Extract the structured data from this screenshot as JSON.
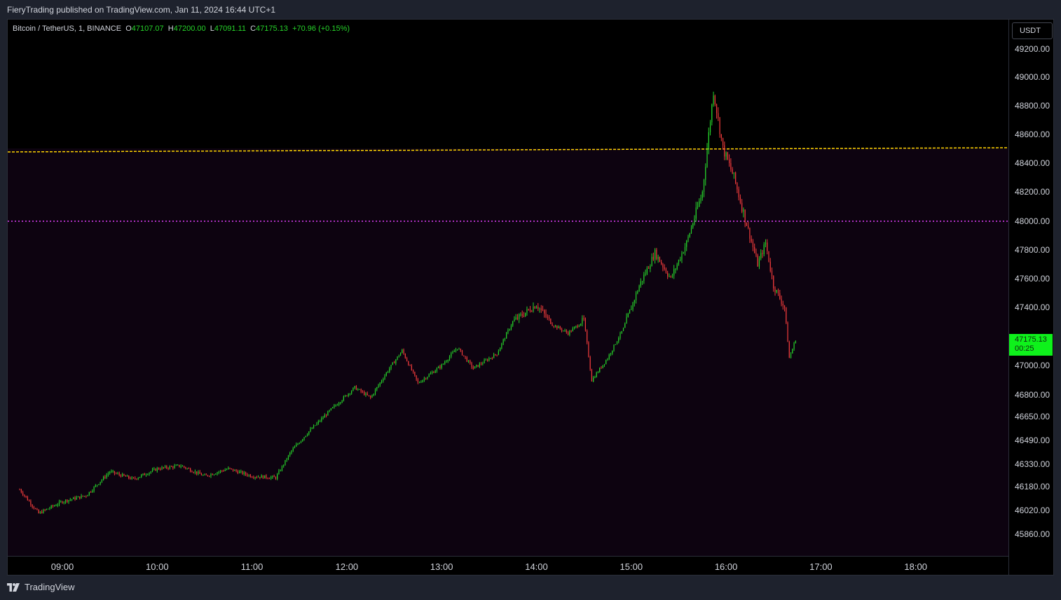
{
  "header": {
    "text": "FieryTrading published on TradingView.com, Jan 11, 2024 16:44 UTC+1"
  },
  "legend": {
    "symbol": "Bitcoin / TetherUS, 1, BINANCE",
    "o_label": "O",
    "o_value": "47107.07",
    "h_label": "H",
    "h_value": "47200.00",
    "l_label": "L",
    "l_value": "47091.11",
    "c_label": "C",
    "c_value": "47175.13",
    "change": "+70.96 (+0.15%)"
  },
  "price_axis": {
    "currency": "USDT",
    "labels": [
      "49200.00",
      "49000.00",
      "48800.00",
      "48600.00",
      "48400.00",
      "48200.00",
      "48000.00",
      "47800.00",
      "47600.00",
      "47400.00",
      "47000.00",
      "46800.00",
      "46650.00",
      "46490.00",
      "46330.00",
      "46180.00",
      "46020.00",
      "45860.00"
    ],
    "last_price": "47175.13",
    "countdown": "00:25"
  },
  "time_axis": {
    "labels": [
      "09:00",
      "10:00",
      "11:00",
      "12:00",
      "13:00",
      "14:00",
      "15:00",
      "16:00",
      "17:00",
      "18:00"
    ]
  },
  "footer": {
    "brand": "TradingView"
  },
  "colors": {
    "up": "#26d32a",
    "down": "#ef3b3b",
    "zone": "#0d0310",
    "line_yellow": "#ffd400",
    "line_magenta": "#e040fb",
    "price_tag": "#0ef11b"
  },
  "chart_data": {
    "type": "candlestick",
    "symbol": "BTCUSDT",
    "interval": "1m",
    "y_range": [
      45860,
      49200
    ],
    "x_range": [
      "08:33",
      "18:46"
    ],
    "horizontal_lines": [
      {
        "price": 48500,
        "color": "#ffd400",
        "style": "dashed"
      },
      {
        "price": 48000,
        "color": "#e040fb",
        "style": "dotted"
      }
    ],
    "shaded_zone_below": 48500,
    "key_points": [
      {
        "time": "08:33",
        "price": 46160
      },
      {
        "time": "08:45",
        "price": 46000
      },
      {
        "time": "09:00",
        "price": 46080
      },
      {
        "time": "09:15",
        "price": 46120
      },
      {
        "time": "09:30",
        "price": 46280
      },
      {
        "time": "09:45",
        "price": 46230
      },
      {
        "time": "10:00",
        "price": 46300
      },
      {
        "time": "10:15",
        "price": 46320
      },
      {
        "time": "10:30",
        "price": 46250
      },
      {
        "time": "10:45",
        "price": 46300
      },
      {
        "time": "11:00",
        "price": 46250
      },
      {
        "time": "11:15",
        "price": 46240
      },
      {
        "time": "11:25",
        "price": 46420
      },
      {
        "time": "11:35",
        "price": 46540
      },
      {
        "time": "11:50",
        "price": 46700
      },
      {
        "time": "12:05",
        "price": 46850
      },
      {
        "time": "12:15",
        "price": 46780
      },
      {
        "time": "12:25",
        "price": 46950
      },
      {
        "time": "12:35",
        "price": 47100
      },
      {
        "time": "12:45",
        "price": 46880
      },
      {
        "time": "13:00",
        "price": 47000
      },
      {
        "time": "13:10",
        "price": 47120
      },
      {
        "time": "13:20",
        "price": 46980
      },
      {
        "time": "13:35",
        "price": 47080
      },
      {
        "time": "13:45",
        "price": 47300
      },
      {
        "time": "14:00",
        "price": 47420
      },
      {
        "time": "14:10",
        "price": 47280
      },
      {
        "time": "14:20",
        "price": 47220
      },
      {
        "time": "14:30",
        "price": 47310
      },
      {
        "time": "14:35",
        "price": 46900
      },
      {
        "time": "14:45",
        "price": 47050
      },
      {
        "time": "14:55",
        "price": 47250
      },
      {
        "time": "15:05",
        "price": 47550
      },
      {
        "time": "15:15",
        "price": 47780
      },
      {
        "time": "15:25",
        "price": 47600
      },
      {
        "time": "15:35",
        "price": 47850
      },
      {
        "time": "15:45",
        "price": 48200
      },
      {
        "time": "15:52",
        "price": 48900
      },
      {
        "time": "15:58",
        "price": 48500
      },
      {
        "time": "16:05",
        "price": 48300
      },
      {
        "time": "16:15",
        "price": 47900
      },
      {
        "time": "16:20",
        "price": 47700
      },
      {
        "time": "16:25",
        "price": 47850
      },
      {
        "time": "16:30",
        "price": 47550
      },
      {
        "time": "16:37",
        "price": 47400
      },
      {
        "time": "16:40",
        "price": 47050
      },
      {
        "time": "16:44",
        "price": 47175.13
      }
    ]
  }
}
